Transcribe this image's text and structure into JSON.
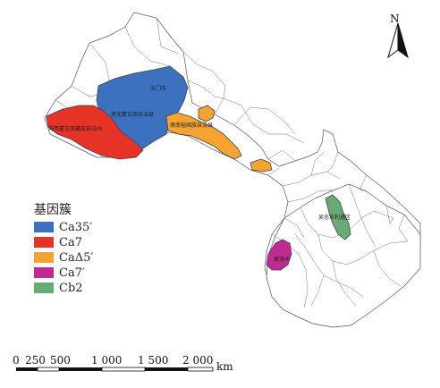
{
  "map": {
    "region_labels": {
      "yumen": "玉门市",
      "subei": "肃北蒙古族自治县",
      "haixi": "海西蒙古族藏族自治州",
      "gannan": "肃南裕固族自治县",
      "wuzhong": "吴忠市利通区",
      "guoluo": "果洛州"
    },
    "north_label": "N"
  },
  "legend": {
    "title": "基因簇",
    "items": [
      {
        "label": "Ca35′",
        "color": "#3b71bf"
      },
      {
        "label": "Ca7",
        "color": "#e53327"
      },
      {
        "label": "CaΔ5′",
        "color": "#f5a333"
      },
      {
        "label": "Ca7′",
        "color": "#c02a92"
      },
      {
        "label": "Cb2",
        "color": "#6aaa74"
      }
    ]
  },
  "scale": {
    "labels": [
      "0",
      "250",
      "500",
      "1 000",
      "1 500",
      "2 000"
    ],
    "unit": "km"
  }
}
